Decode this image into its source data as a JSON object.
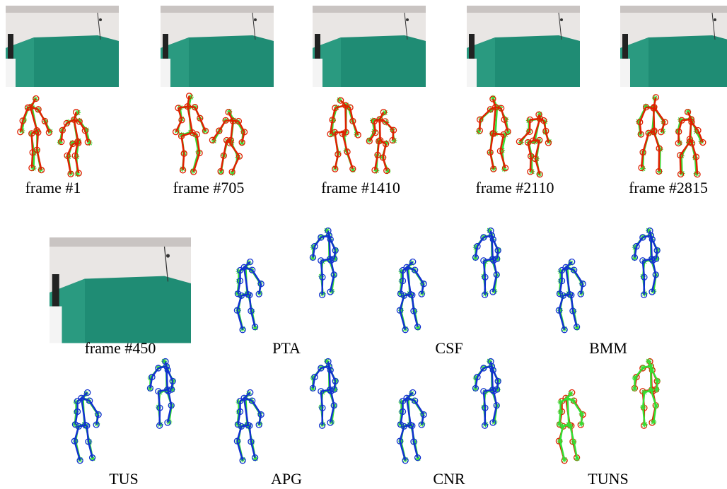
{
  "top_row": [
    "frame #1",
    "frame #705",
    "frame #1410",
    "frame #2110",
    "frame #2815"
  ],
  "comparison": {
    "frame_caption": "frame #450",
    "methods": [
      "PTA",
      "CSF",
      "BMM",
      "TUS",
      "APG",
      "CNR",
      "TUNS"
    ]
  }
}
